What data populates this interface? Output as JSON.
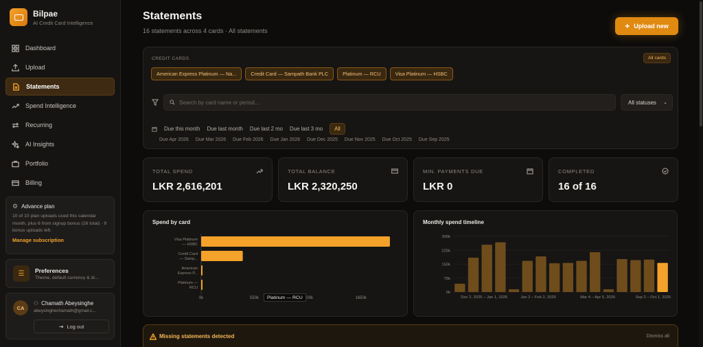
{
  "brand": {
    "name": "Bilpae",
    "tagline": "AI Credit Card Intelligence"
  },
  "sidebar": {
    "items": [
      {
        "label": "Dashboard",
        "icon": "grid-icon"
      },
      {
        "label": "Upload",
        "icon": "upload-icon"
      },
      {
        "label": "Statements",
        "icon": "document-icon",
        "active": true
      },
      {
        "label": "Spend Intelligence",
        "icon": "trend-icon"
      },
      {
        "label": "Recurring",
        "icon": "repeat-icon"
      },
      {
        "label": "AI Insights",
        "icon": "sparkle-icon"
      },
      {
        "label": "Portfolio",
        "icon": "briefcase-icon"
      },
      {
        "label": "Billing",
        "icon": "card-icon"
      }
    ],
    "plan": {
      "title": "Advance plan",
      "text": "10 of 10 plan uploads used this calendar month, plus 6 from signup bonus (16 total) · 9 bonus uploads left.",
      "link": "Manage subscription"
    },
    "preferences": {
      "title": "Preferences",
      "subtitle": "Theme, default currency & di..."
    },
    "user": {
      "initials": "CA",
      "name": "Chamath Abeysinghe",
      "email": "abeysinghechamath@gmail.c...",
      "logout": "Log out"
    }
  },
  "header": {
    "title": "Statements",
    "subtitle": "16 statements across 4 cards · All statements",
    "upload_label": "Upload new"
  },
  "filters": {
    "label": "CREDIT CARDS",
    "all_cards": "All cards",
    "cards": [
      "American Express Platinum — Na...",
      "Credit Card — Sampath Bank PLC",
      "Platinum — RCU",
      "Visa Platinum — HSBC"
    ],
    "search_placeholder": "Search by card name or period...",
    "status": "All statuses",
    "quick": [
      "Due this month",
      "Due last month",
      "Due last 2 mo",
      "Due last 3 mo",
      "All"
    ],
    "quick_active": "All",
    "months": [
      "Due Apr 2026",
      "Due Mar 2026",
      "Due Feb 2026",
      "Due Jan 2026",
      "Due Dec 2025",
      "Due Nov 2025",
      "Due Oct 2025",
      "Due Sep 2025"
    ]
  },
  "stats": [
    {
      "label": "TOTAL SPEND",
      "value": "LKR 2,616,201",
      "icon": "trend-up-icon"
    },
    {
      "label": "TOTAL BALANCE",
      "value": "LKR 2,320,250",
      "icon": "card-icon"
    },
    {
      "label": "MIN. PAYMENTS DUE",
      "value": "LKR 0",
      "icon": "calendar-icon"
    },
    {
      "label": "COMPLETED",
      "value": "16 of 16",
      "icon": "check-circle-icon"
    }
  ],
  "colors": {
    "accent": "#f4a22a",
    "bar_dim": "#6e4c1c",
    "bg": "#0d0c0b"
  },
  "chart_data": [
    {
      "type": "bar",
      "orientation": "horizontal",
      "title": "Spend by card",
      "categories": [
        "Visa Platinum — HSBC",
        "Credit Card — Samp...",
        "American Express P...",
        "Platinum — RCU"
      ],
      "category_lines": [
        [
          "Visa Platinum",
          "— HSBC"
        ],
        [
          "Credit Card",
          "— Samp..."
        ],
        [
          "American",
          "Express P..."
        ],
        [
          "Platinum —",
          "RCU"
        ]
      ],
      "values": [
        1950000,
        430000,
        10000,
        8000
      ],
      "xticks": [
        "0k",
        "550k",
        "1100k",
        "1650k"
      ],
      "xlim": [
        0,
        2000000
      ],
      "tooltip": "Platinum — RCU"
    },
    {
      "type": "bar",
      "title": "Monthly spend timeline",
      "categories": [
        "Dec 2, 2025 – Jan 1, 2026",
        "",
        "",
        "",
        "",
        "Jan 2 – Feb 2, 2026",
        "",
        "",
        "",
        "",
        "Mar 4 – Apr 5, 2026",
        "",
        "",
        "",
        "",
        "Sep 2 – Oct 1, 2025"
      ],
      "values": [
        45000,
        185000,
        255000,
        268000,
        15000,
        168000,
        192000,
        155000,
        157000,
        168000,
        215000,
        15000,
        178000,
        172000,
        175000,
        157000
      ],
      "highlight_index": 15,
      "yticks": [
        "0k",
        "75k",
        "150k",
        "225k",
        "300k"
      ],
      "ylim": [
        0,
        300000
      ],
      "xticks": [
        "Dec 2, 2025 – Jan 1, 2026",
        "Jan 2 – Feb 2, 2026",
        "Mar 4 – Apr 5, 2026",
        "Sep 2 – Oct 1, 2025"
      ]
    }
  ],
  "alert": {
    "title": "Missing statements detected",
    "dismiss": "Dismiss all"
  }
}
